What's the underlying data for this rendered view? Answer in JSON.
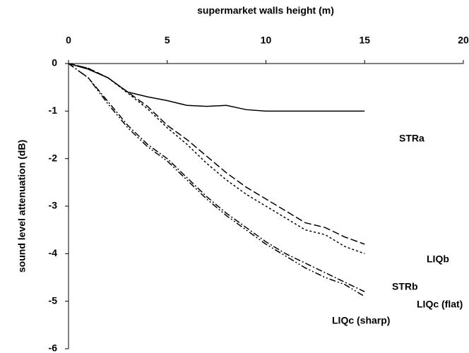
{
  "chart_data": {
    "type": "line",
    "xlabel": "supermarket walls height (m)",
    "ylabel": "sound level attenuation (dB)",
    "x": [
      0,
      1,
      2,
      3,
      4,
      5,
      6,
      7,
      8,
      9,
      10,
      11,
      12,
      13,
      14,
      15
    ],
    "series": [
      {
        "name": "STRa",
        "color": "#000000",
        "style": "solid",
        "values": [
          0,
          -0.12,
          -0.3,
          -0.6,
          -0.7,
          -0.78,
          -0.88,
          -0.9,
          -0.88,
          -0.97,
          -1,
          -1,
          -1,
          -1,
          -1,
          -1
        ]
      },
      {
        "name": "LIQb",
        "color": "#000000",
        "style": "dashed",
        "values": [
          0,
          -0.1,
          -0.3,
          -0.6,
          -0.9,
          -1.3,
          -1.6,
          -1.95,
          -2.3,
          -2.6,
          -2.85,
          -3.1,
          -3.35,
          -3.45,
          -3.65,
          -3.8
        ]
      },
      {
        "name": "STRb",
        "color": "#000000",
        "style": "dotted",
        "values": [
          0,
          -0.1,
          -0.3,
          -0.62,
          -0.95,
          -1.35,
          -1.7,
          -2.1,
          -2.45,
          -2.75,
          -3.0,
          -3.25,
          -3.5,
          -3.6,
          -3.85,
          -4.0
        ]
      },
      {
        "name": "LIQc (flat)",
        "color": "#000000",
        "style": "dashdot",
        "values": [
          0,
          -0.3,
          -0.8,
          -1.3,
          -1.7,
          -2.0,
          -2.4,
          -2.8,
          -3.15,
          -3.45,
          -3.75,
          -4.0,
          -4.2,
          -4.4,
          -4.6,
          -4.8
        ]
      },
      {
        "name": "LIQc (sharp)",
        "color": "#000000",
        "style": "dashdotdot",
        "values": [
          0,
          -0.3,
          -0.85,
          -1.35,
          -1.75,
          -2.05,
          -2.45,
          -2.85,
          -3.2,
          -3.5,
          -3.8,
          -4.05,
          -4.3,
          -4.5,
          -4.65,
          -4.9
        ]
      }
    ],
    "xlim": [
      0,
      20
    ],
    "xticks": [
      0,
      5,
      10,
      15,
      20
    ],
    "ylim": [
      -6,
      0
    ],
    "yticks": [
      0,
      -1,
      -2,
      -3,
      -4,
      -5,
      -6
    ]
  }
}
